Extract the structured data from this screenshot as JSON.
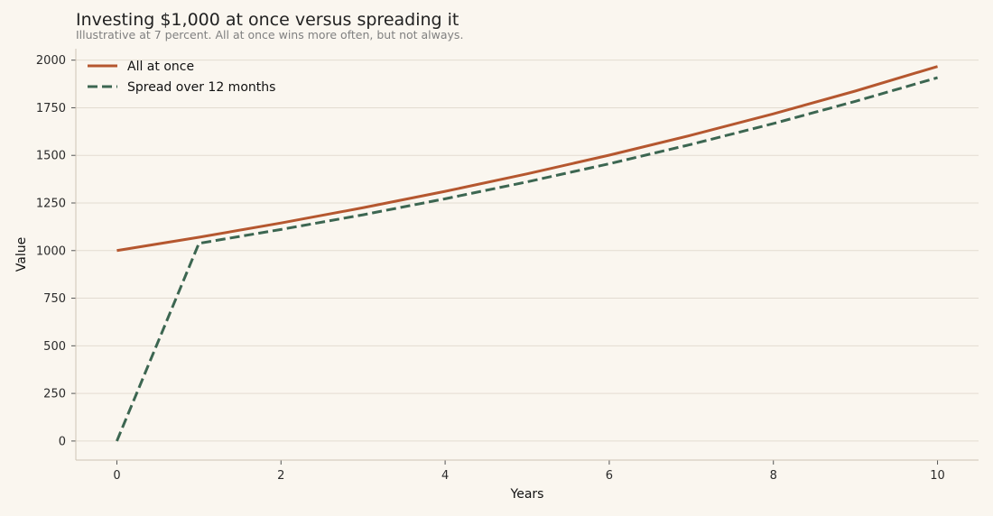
{
  "chart_data": {
    "type": "line",
    "title": "Investing $1,000 at once versus spreading it",
    "subtitle": "Illustrative at 7 percent. All at once wins more often, but not always.",
    "xlabel": "Years",
    "ylabel": "Value",
    "xlim": [
      -0.5,
      10.5
    ],
    "ylim": [
      -100,
      2060
    ],
    "xticks": [
      0,
      2,
      4,
      6,
      8,
      10
    ],
    "yticks": [
      0,
      250,
      500,
      750,
      1000,
      1250,
      1500,
      1750,
      2000
    ],
    "grid": "horizontal",
    "legend_position": "top-left",
    "series": [
      {
        "name": "All at once",
        "color": "#b5572f",
        "style": "solid",
        "x": [
          0,
          1,
          2,
          3,
          4,
          5,
          6,
          7,
          8,
          9,
          10
        ],
        "y": [
          1000,
          1070,
          1145,
          1225,
          1311,
          1403,
          1501,
          1606,
          1718,
          1838,
          1967
        ]
      },
      {
        "name": "Spread over 12 months",
        "color": "#3c6651",
        "style": "dashed",
        "x": [
          0,
          1,
          2,
          3,
          4,
          5,
          6,
          7,
          8,
          9,
          10
        ],
        "y": [
          0,
          1038,
          1111,
          1188,
          1272,
          1361,
          1456,
          1558,
          1667,
          1784,
          1908
        ]
      }
    ]
  }
}
